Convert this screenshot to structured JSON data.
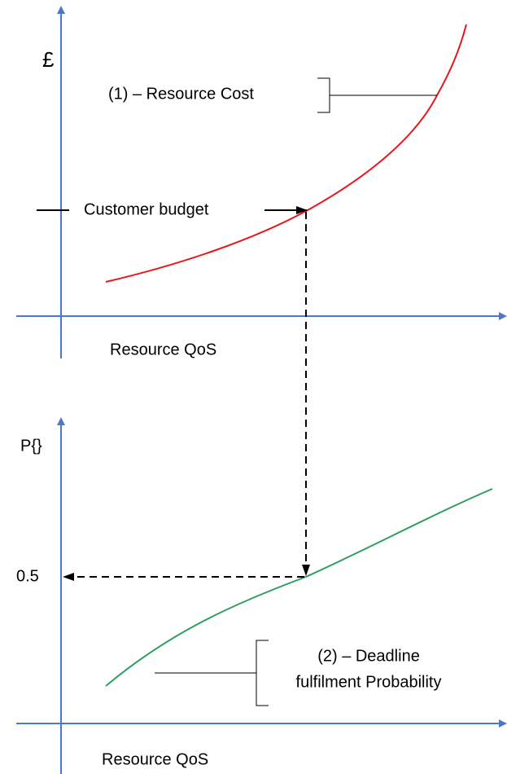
{
  "top_chart": {
    "y_label": "£",
    "curve_label": "(1) – Resource Cost",
    "marker_label": "Customer budget",
    "x_label": "Resource QoS"
  },
  "bottom_chart": {
    "y_label": "P{}",
    "marker_label": "0.5",
    "curve_label": [
      "(2) – Deadline",
      "fulfilment Probability"
    ],
    "x_label": "Resource QoS"
  }
}
